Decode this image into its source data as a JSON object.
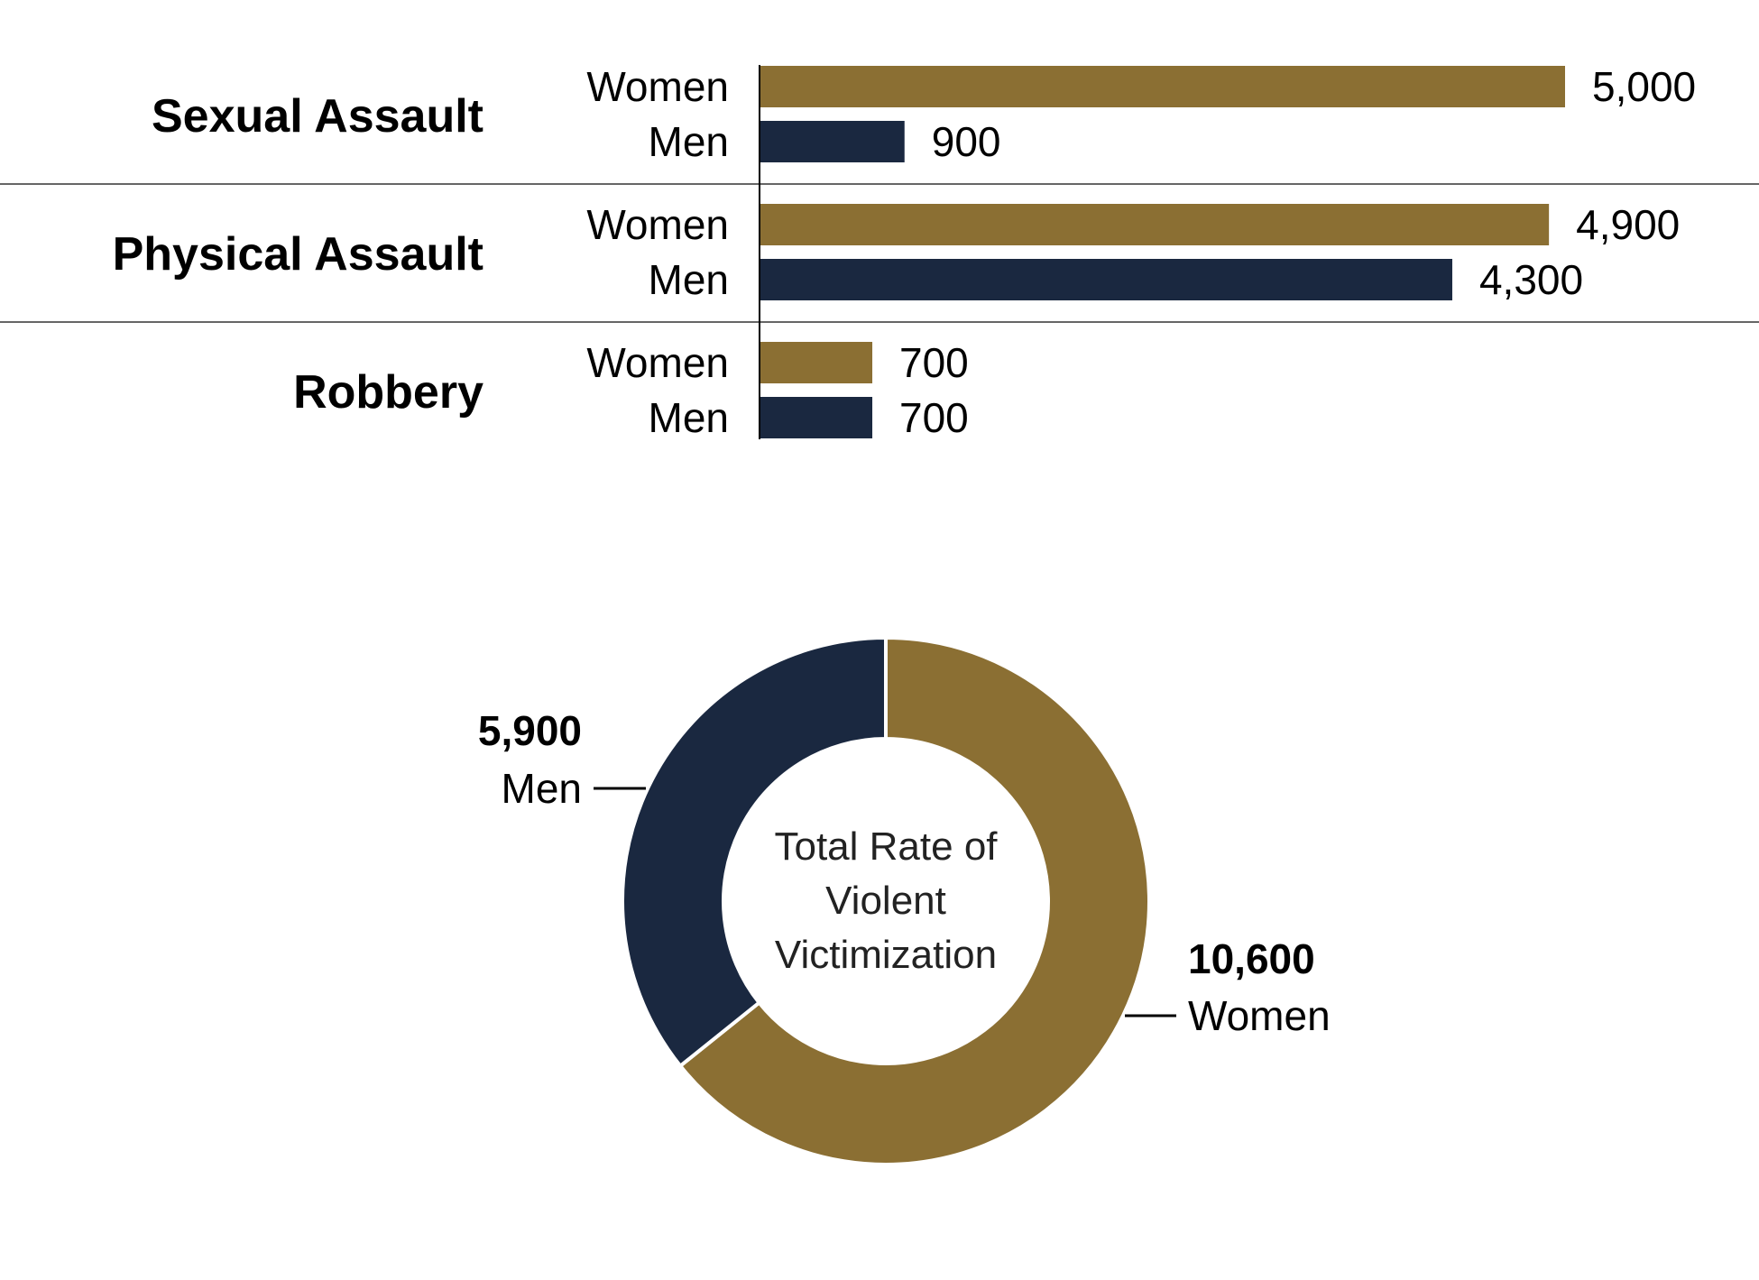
{
  "chart_data": [
    {
      "type": "bar",
      "orientation": "horizontal",
      "categories": [
        "Sexual Assault",
        "Physical Assault",
        "Robbery"
      ],
      "series": [
        {
          "name": "Women",
          "values": [
            5000,
            4900,
            700
          ]
        },
        {
          "name": "Men",
          "values": [
            900,
            4300,
            700
          ]
        }
      ],
      "value_labels": {
        "Women": [
          "5,000",
          "4,900",
          "700"
        ],
        "Men": [
          "900",
          "4,300",
          "700"
        ]
      },
      "colors": {
        "Women": "#8B6F33",
        "Men": "#1A2840"
      },
      "grid": false
    },
    {
      "type": "pie",
      "style": "donut",
      "center_label": [
        "Total Rate of",
        "Violent",
        "Victimization"
      ],
      "slices": [
        {
          "name": "Women",
          "value": 10600,
          "label": "10,600",
          "color": "#8B6F33"
        },
        {
          "name": "Men",
          "value": 5900,
          "label": "5,900",
          "color": "#1A2840"
        }
      ]
    }
  ]
}
